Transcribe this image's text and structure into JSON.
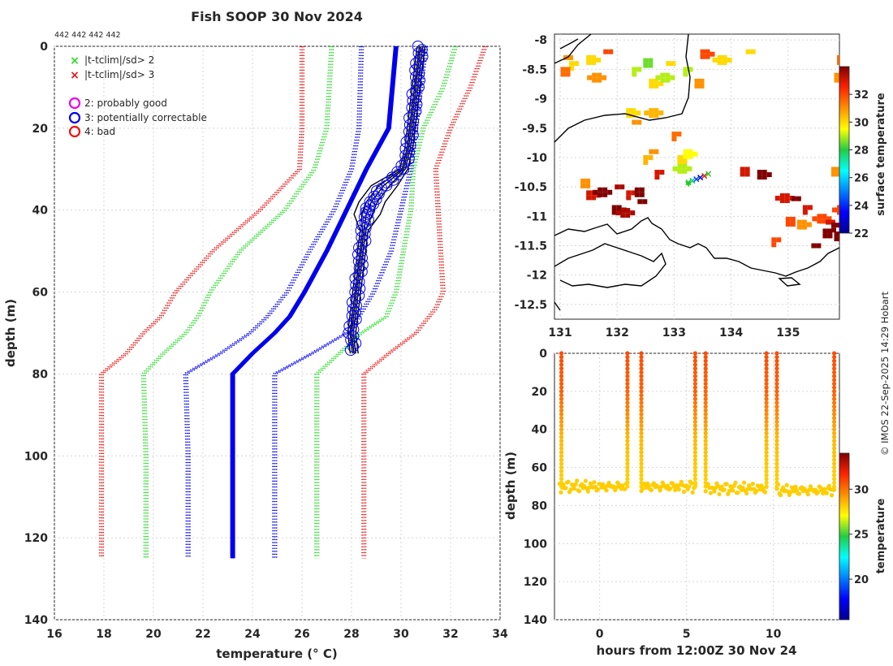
{
  "figure": {
    "title": "Fish SOOP 30 Nov 2024",
    "id_strip": "442 442 442 442",
    "credit": "© IMOS 22-Sep-2025 14:29 Hobart"
  },
  "legend": {
    "flags": [
      {
        "symbol": "×",
        "color": "#22dd22",
        "label": "|t-tclim|/sd> 2"
      },
      {
        "symbol": "×",
        "color": "#ee1111",
        "label": "|t-tclim|/sd> 3"
      }
    ],
    "qc": [
      {
        "color": "#ee00ee",
        "label": "2: probably good"
      },
      {
        "color": "#0000ee",
        "label": "3: potentially correctable"
      },
      {
        "color": "#ee1111",
        "label": "4: bad"
      }
    ]
  },
  "chart_data": [
    {
      "type": "line",
      "name": "temperature-profile",
      "xlabel": "temperature (° C)",
      "ylabel": "depth (m)",
      "xlim": [
        16,
        34
      ],
      "ylim": [
        0,
        140
      ],
      "y_reversed": true,
      "xticks": [
        16,
        18,
        20,
        22,
        24,
        26,
        28,
        30,
        32,
        34
      ],
      "yticks": [
        0,
        20,
        40,
        60,
        80,
        100,
        120,
        140
      ],
      "grid": true,
      "climatology": [
        {
          "name": "clim -3sd",
          "color": "#ee1111",
          "style": "dotted",
          "points": [
            [
              26.0,
              0
            ],
            [
              26.0,
              20
            ],
            [
              25.9,
              30
            ],
            [
              24.3,
              40
            ],
            [
              22.4,
              50
            ],
            [
              20.9,
              60
            ],
            [
              20.3,
              66
            ],
            [
              19.6,
              70
            ],
            [
              18.9,
              75
            ],
            [
              17.9,
              80
            ],
            [
              17.9,
              100
            ],
            [
              17.9,
              125
            ]
          ]
        },
        {
          "name": "clim -2sd",
          "color": "#22dd22",
          "style": "dotted",
          "points": [
            [
              27.2,
              0
            ],
            [
              27.0,
              20
            ],
            [
              26.5,
              30
            ],
            [
              25.3,
              40
            ],
            [
              23.5,
              50
            ],
            [
              22.3,
              60
            ],
            [
              21.8,
              66
            ],
            [
              21.3,
              70
            ],
            [
              20.4,
              75
            ],
            [
              19.6,
              80
            ],
            [
              19.7,
              100
            ],
            [
              19.7,
              125
            ]
          ]
        },
        {
          "name": "clim -1sd",
          "color": "#0000ee",
          "style": "dotted",
          "points": [
            [
              28.4,
              0
            ],
            [
              28.3,
              20
            ],
            [
              28.0,
              30
            ],
            [
              27.3,
              40
            ],
            [
              26.3,
              50
            ],
            [
              25.4,
              60
            ],
            [
              24.6,
              66
            ],
            [
              23.9,
              70
            ],
            [
              22.7,
              75
            ],
            [
              21.3,
              80
            ],
            [
              21.4,
              100
            ],
            [
              21.4,
              125
            ]
          ]
        },
        {
          "name": "clim mean",
          "color": "#0000ee",
          "style": "solid",
          "points": [
            [
              29.8,
              0
            ],
            [
              29.5,
              20
            ],
            [
              28.6,
              30
            ],
            [
              27.8,
              40
            ],
            [
              27.0,
              50
            ],
            [
              26.1,
              60
            ],
            [
              25.5,
              66
            ],
            [
              24.9,
              70
            ],
            [
              24.0,
              75
            ],
            [
              23.2,
              80
            ],
            [
              23.2,
              100
            ],
            [
              23.2,
              125
            ]
          ]
        },
        {
          "name": "clim +1sd",
          "color": "#0000ee",
          "style": "dotted",
          "points": [
            [
              31.0,
              0
            ],
            [
              30.6,
              20
            ],
            [
              30.4,
              30
            ],
            [
              30.0,
              40
            ],
            [
              29.6,
              50
            ],
            [
              28.9,
              60
            ],
            [
              28.3,
              66
            ],
            [
              27.8,
              70
            ],
            [
              26.4,
              75
            ],
            [
              24.9,
              80
            ],
            [
              24.9,
              100
            ],
            [
              24.9,
              125
            ]
          ]
        },
        {
          "name": "clim +2sd",
          "color": "#22dd22",
          "style": "dotted",
          "points": [
            [
              32.2,
              0
            ],
            [
              31.7,
              10
            ],
            [
              30.9,
              20
            ],
            [
              30.5,
              30
            ],
            [
              30.4,
              40
            ],
            [
              30.1,
              50
            ],
            [
              29.8,
              60
            ],
            [
              29.4,
              66
            ],
            [
              28.4,
              70
            ],
            [
              27.5,
              75
            ],
            [
              26.6,
              80
            ],
            [
              26.6,
              100
            ],
            [
              26.6,
              125
            ]
          ]
        },
        {
          "name": "clim +3sd",
          "color": "#ee1111",
          "style": "dotted",
          "points": [
            [
              33.4,
              0
            ],
            [
              32.8,
              10
            ],
            [
              32.0,
              20
            ],
            [
              31.4,
              30
            ],
            [
              31.5,
              40
            ],
            [
              31.6,
              50
            ],
            [
              31.7,
              60
            ],
            [
              31.4,
              64
            ],
            [
              30.6,
              70
            ],
            [
              29.5,
              75
            ],
            [
              28.5,
              80
            ],
            [
              28.5,
              100
            ],
            [
              28.5,
              125
            ]
          ]
        }
      ],
      "observed": {
        "name": "observed profiles",
        "color": "#000000",
        "qc_marker_color": "#0000ee",
        "points": [
          [
            30.8,
            0
          ],
          [
            30.7,
            5
          ],
          [
            30.6,
            10
          ],
          [
            30.5,
            15
          ],
          [
            30.4,
            20
          ],
          [
            30.3,
            25
          ],
          [
            30.1,
            30
          ],
          [
            29.3,
            34
          ],
          [
            28.8,
            38
          ],
          [
            28.6,
            41
          ],
          [
            28.5,
            45
          ],
          [
            28.4,
            50
          ],
          [
            28.3,
            55
          ],
          [
            28.2,
            60
          ],
          [
            28.1,
            65
          ],
          [
            28.0,
            70
          ],
          [
            28.1,
            75
          ]
        ]
      }
    },
    {
      "type": "heatmap",
      "name": "surface-temperature-map",
      "xlim": [
        130.9,
        135.9
      ],
      "ylim": [
        -12.75,
        -7.9
      ],
      "xticks": [
        131,
        132,
        133,
        134,
        135
      ],
      "yticks": [
        -8,
        -8.5,
        -9,
        -9.5,
        -10,
        -10.5,
        -11,
        -11.5,
        -12,
        -12.5
      ],
      "colorbar": {
        "label": "surface temperature",
        "range": [
          22,
          34
        ],
        "ticks": [
          22,
          24,
          26,
          28,
          30,
          32
        ]
      },
      "track": {
        "lon": [
          133.25,
          133.6
        ],
        "lat": [
          -10.42,
          -10.28
        ]
      },
      "cells": [
        {
          "lon": 131.1,
          "lat": -8.3,
          "t": 31
        },
        {
          "lon": 131.2,
          "lat": -8.4,
          "t": 30
        },
        {
          "lon": 131.05,
          "lat": -8.5,
          "t": 31.5
        },
        {
          "lon": 131.5,
          "lat": -8.3,
          "t": 30
        },
        {
          "lon": 131.6,
          "lat": -8.6,
          "t": 31
        },
        {
          "lon": 131.8,
          "lat": -8.2,
          "t": 32
        },
        {
          "lon": 132.3,
          "lat": -8.5,
          "t": 29
        },
        {
          "lon": 132.5,
          "lat": -8.35,
          "t": 28.5
        },
        {
          "lon": 132.6,
          "lat": -8.7,
          "t": 30
        },
        {
          "lon": 132.8,
          "lat": -8.6,
          "t": 29
        },
        {
          "lon": 132.9,
          "lat": -8.4,
          "t": 30
        },
        {
          "lon": 133.2,
          "lat": -8.5,
          "t": 29
        },
        {
          "lon": 133.4,
          "lat": -8.7,
          "t": 31
        },
        {
          "lon": 133.5,
          "lat": -8.2,
          "t": 32
        },
        {
          "lon": 133.8,
          "lat": -8.3,
          "t": 30
        },
        {
          "lon": 134.3,
          "lat": -8.2,
          "t": 30
        },
        {
          "lon": 135.9,
          "lat": -8.3,
          "t": 31.5
        },
        {
          "lon": 135.85,
          "lat": -8.6,
          "t": 31
        },
        {
          "lon": 132.2,
          "lat": -9.2,
          "t": 30
        },
        {
          "lon": 132.6,
          "lat": -9.2,
          "t": 30.5
        },
        {
          "lon": 132.3,
          "lat": -9.4,
          "t": 31
        },
        {
          "lon": 133.0,
          "lat": -9.6,
          "t": 31.5
        },
        {
          "lon": 133.1,
          "lat": -10.0,
          "t": 30
        },
        {
          "lon": 133.2,
          "lat": -9.9,
          "t": 29.5
        },
        {
          "lon": 133.1,
          "lat": -10.15,
          "t": 29
        },
        {
          "lon": 132.6,
          "lat": -9.9,
          "t": 31
        },
        {
          "lon": 132.5,
          "lat": -10.0,
          "t": 30.5
        },
        {
          "lon": 131.4,
          "lat": -10.4,
          "t": 31
        },
        {
          "lon": 131.5,
          "lat": -10.6,
          "t": 33
        },
        {
          "lon": 131.7,
          "lat": -10.55,
          "t": 34
        },
        {
          "lon": 132.0,
          "lat": -10.5,
          "t": 33.5
        },
        {
          "lon": 132.2,
          "lat": -10.6,
          "t": 33
        },
        {
          "lon": 132.35,
          "lat": -10.55,
          "t": 34
        },
        {
          "lon": 131.95,
          "lat": -10.85,
          "t": 34
        },
        {
          "lon": 132.1,
          "lat": -10.9,
          "t": 33.5
        },
        {
          "lon": 132.4,
          "lat": -10.75,
          "t": 34
        },
        {
          "lon": 132.7,
          "lat": -10.25,
          "t": 33
        },
        {
          "lon": 134.2,
          "lat": -10.2,
          "t": 33
        },
        {
          "lon": 134.5,
          "lat": -10.25,
          "t": 34
        },
        {
          "lon": 134.9,
          "lat": -10.65,
          "t": 33
        },
        {
          "lon": 135.1,
          "lat": -10.7,
          "t": 34
        },
        {
          "lon": 135.3,
          "lat": -10.85,
          "t": 33
        },
        {
          "lon": 135.0,
          "lat": -11.05,
          "t": 32
        },
        {
          "lon": 135.2,
          "lat": -11.1,
          "t": 31
        },
        {
          "lon": 135.55,
          "lat": -11.0,
          "t": 32
        },
        {
          "lon": 135.7,
          "lat": -11.1,
          "t": 33
        },
        {
          "lon": 135.8,
          "lat": -11.15,
          "t": 34
        },
        {
          "lon": 135.65,
          "lat": -11.25,
          "t": 34
        },
        {
          "lon": 135.85,
          "lat": -11.3,
          "t": 34
        },
        {
          "lon": 135.9,
          "lat": -10.85,
          "t": 32
        },
        {
          "lon": 135.45,
          "lat": -11.5,
          "t": 34
        },
        {
          "lon": 134.75,
          "lat": -11.4,
          "t": 32
        },
        {
          "lon": 135.8,
          "lat": -10.2,
          "t": 31
        }
      ]
    },
    {
      "type": "scatter",
      "name": "depth-time-section",
      "xlabel": "hours from 12:00Z 30 Nov 24",
      "ylabel": "depth (m)",
      "xlim": [
        -2.6,
        13.8
      ],
      "ylim": [
        0,
        140
      ],
      "y_reversed": true,
      "xticks": [
        0,
        5,
        10
      ],
      "yticks": [
        0,
        20,
        40,
        60,
        80,
        100,
        120,
        140
      ],
      "colorbar": {
        "label": "temperature",
        "range": [
          15.5,
          34
        ],
        "ticks": [
          20,
          25,
          30
        ]
      },
      "casts": [
        {
          "start": -2.3,
          "end": 1.6,
          "bottom": 70
        },
        {
          "start": 2.4,
          "end": 5.5,
          "bottom": 70
        },
        {
          "start": 6.1,
          "end": 9.6,
          "bottom": 71
        },
        {
          "start": 10.2,
          "end": 13.5,
          "bottom": 72
        }
      ],
      "profiles": [
        {
          "t": -2.2,
          "temps": [
            [
              0,
              30.8
            ],
            [
              20,
              30.4
            ],
            [
              35,
              29.3
            ],
            [
              45,
              28.5
            ],
            [
              60,
              28.2
            ],
            [
              70,
              28.0
            ]
          ]
        },
        {
          "t": 1.6,
          "temps": [
            [
              0,
              30.8
            ],
            [
              20,
              30.4
            ],
            [
              35,
              29.3
            ],
            [
              45,
              28.5
            ],
            [
              60,
              28.2
            ],
            [
              70,
              28.0
            ]
          ]
        },
        {
          "t": 2.4,
          "temps": [
            [
              0,
              30.8
            ],
            [
              20,
              30.4
            ],
            [
              35,
              29.3
            ],
            [
              45,
              28.5
            ],
            [
              60,
              28.2
            ],
            [
              70,
              28.0
            ]
          ]
        },
        {
          "t": 5.5,
          "temps": [
            [
              0,
              30.8
            ],
            [
              20,
              30.4
            ],
            [
              35,
              29.3
            ],
            [
              45,
              28.5
            ],
            [
              60,
              28.2
            ],
            [
              70,
              28.0
            ]
          ]
        },
        {
          "t": 6.1,
          "temps": [
            [
              0,
              30.8
            ],
            [
              20,
              30.4
            ],
            [
              35,
              29.3
            ],
            [
              45,
              28.5
            ],
            [
              60,
              28.2
            ],
            [
              70,
              28.0
            ]
          ]
        },
        {
          "t": 9.6,
          "temps": [
            [
              0,
              30.8
            ],
            [
              20,
              30.4
            ],
            [
              35,
              29.3
            ],
            [
              45,
              28.5
            ],
            [
              60,
              28.2
            ],
            [
              70,
              28.0
            ]
          ]
        },
        {
          "t": 10.2,
          "temps": [
            [
              0,
              30.8
            ],
            [
              20,
              30.4
            ],
            [
              35,
              29.3
            ],
            [
              45,
              28.5
            ],
            [
              60,
              28.2
            ],
            [
              70,
              28.0
            ]
          ]
        },
        {
          "t": 13.5,
          "temps": [
            [
              0,
              30.8
            ],
            [
              20,
              30.4
            ],
            [
              35,
              29.3
            ],
            [
              45,
              28.5
            ],
            [
              60,
              28.2
            ],
            [
              70,
              28.0
            ]
          ]
        }
      ]
    }
  ]
}
